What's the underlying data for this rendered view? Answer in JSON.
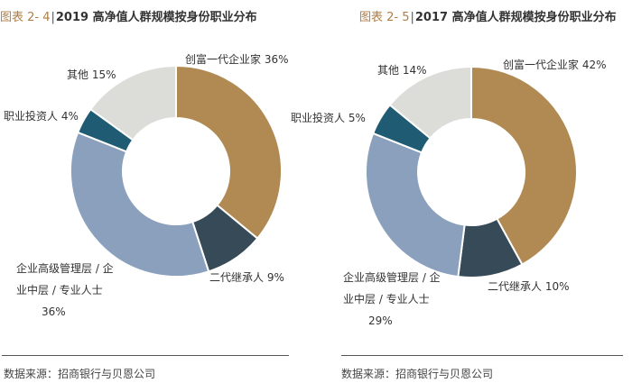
{
  "colors": {
    "title_prefix": "#b07d47",
    "slices": [
      "#b08a52",
      "#374a57",
      "#8aa0bd",
      "#1f5b73",
      "#dcdcd8"
    ],
    "rule": "#555555"
  },
  "chart_data": [
    {
      "type": "pie",
      "style": "donut",
      "title_prefix": "图表 2- 4",
      "title_sep": "|",
      "title": "2019 高净值人群规模按身份职业分布",
      "slices": [
        {
          "label_lines": [
            "创富一代企业家 36%"
          ],
          "value": 36
        },
        {
          "label_lines": [
            "二代继承人 9%"
          ],
          "value": 9
        },
        {
          "label_lines": [
            "企业高级管理层 / 企",
            "业中层 / 专业人士",
            "36%"
          ],
          "value": 36
        },
        {
          "label_lines": [
            "职业投资人 4%"
          ],
          "value": 4
        },
        {
          "label_lines": [
            "其他 15%"
          ],
          "value": 15
        }
      ],
      "source": "数据来源：招商银行与贝恩公司"
    },
    {
      "type": "pie",
      "style": "donut",
      "title_prefix": "图表 2- 5",
      "title_sep": "|",
      "title": "2017 高净值人群规模按身份职业分布",
      "slices": [
        {
          "label_lines": [
            "创富一代企业家 42%"
          ],
          "value": 42
        },
        {
          "label_lines": [
            "二代继承人 10%"
          ],
          "value": 10
        },
        {
          "label_lines": [
            "企业高级管理层 / 企",
            "业中层 / 专业人士",
            "29%"
          ],
          "value": 29
        },
        {
          "label_lines": [
            "职业投资人 5%"
          ],
          "value": 5
        },
        {
          "label_lines": [
            "其他 14%"
          ],
          "value": 14
        }
      ],
      "source": "数据来源：招商银行与贝恩公司"
    }
  ]
}
